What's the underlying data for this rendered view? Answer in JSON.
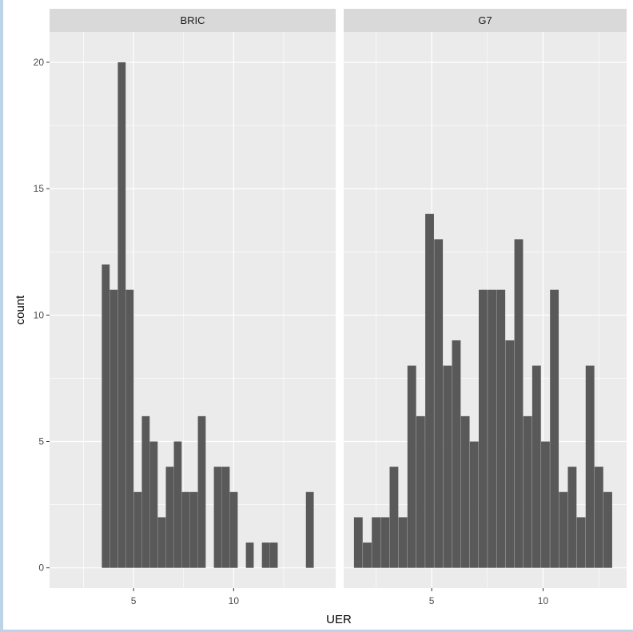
{
  "chart_data": {
    "type": "bar",
    "xlabel": "UER",
    "ylabel": "count",
    "ylim": [
      -0.8,
      21.2
    ],
    "yticks": [
      0,
      5,
      10,
      15,
      20
    ],
    "xticks": [
      5,
      10
    ],
    "bin_width": 0.375,
    "grid": true,
    "colors": {
      "panel_bg": "#ebebeb",
      "strip_bg": "#d9d9d9",
      "bar": "#595959",
      "grid": "#ffffff"
    },
    "panels": [
      {
        "name": "BRIC",
        "xlim": [
          0.8,
          15.1
        ],
        "bins": [
          {
            "x": 3.6,
            "count": 12
          },
          {
            "x": 4.0,
            "count": 11
          },
          {
            "x": 4.4,
            "count": 20
          },
          {
            "x": 4.8,
            "count": 11
          },
          {
            "x": 5.2,
            "count": 3
          },
          {
            "x": 5.6,
            "count": 6
          },
          {
            "x": 6.0,
            "count": 5
          },
          {
            "x": 6.4,
            "count": 2
          },
          {
            "x": 6.8,
            "count": 4
          },
          {
            "x": 7.2,
            "count": 5
          },
          {
            "x": 7.6,
            "count": 3
          },
          {
            "x": 8.0,
            "count": 3
          },
          {
            "x": 8.4,
            "count": 6
          },
          {
            "x": 9.2,
            "count": 4
          },
          {
            "x": 9.6,
            "count": 4
          },
          {
            "x": 10.0,
            "count": 3
          },
          {
            "x": 10.8,
            "count": 1
          },
          {
            "x": 11.6,
            "count": 1
          },
          {
            "x": 12.0,
            "count": 1
          },
          {
            "x": 13.8,
            "count": 3
          }
        ]
      },
      {
        "name": "G7",
        "xlim": [
          1.05,
          13.75
        ],
        "bins": [
          {
            "x": 1.7,
            "count": 2
          },
          {
            "x": 2.1,
            "count": 1
          },
          {
            "x": 2.5,
            "count": 2
          },
          {
            "x": 2.9,
            "count": 2
          },
          {
            "x": 3.3,
            "count": 4
          },
          {
            "x": 3.7,
            "count": 2
          },
          {
            "x": 4.1,
            "count": 8
          },
          {
            "x": 4.5,
            "count": 6
          },
          {
            "x": 4.9,
            "count": 14
          },
          {
            "x": 5.3,
            "count": 13
          },
          {
            "x": 5.7,
            "count": 8
          },
          {
            "x": 6.1,
            "count": 9
          },
          {
            "x": 6.5,
            "count": 6
          },
          {
            "x": 6.9,
            "count": 5
          },
          {
            "x": 7.3,
            "count": 11
          },
          {
            "x": 7.7,
            "count": 11
          },
          {
            "x": 8.1,
            "count": 11
          },
          {
            "x": 8.5,
            "count": 9
          },
          {
            "x": 8.9,
            "count": 13
          },
          {
            "x": 9.3,
            "count": 6
          },
          {
            "x": 9.7,
            "count": 8
          },
          {
            "x": 10.1,
            "count": 5
          },
          {
            "x": 10.5,
            "count": 11
          },
          {
            "x": 10.9,
            "count": 3
          },
          {
            "x": 11.3,
            "count": 4
          },
          {
            "x": 11.7,
            "count": 2
          },
          {
            "x": 12.1,
            "count": 8
          },
          {
            "x": 12.5,
            "count": 4
          },
          {
            "x": 12.9,
            "count": 3
          }
        ]
      }
    ]
  }
}
